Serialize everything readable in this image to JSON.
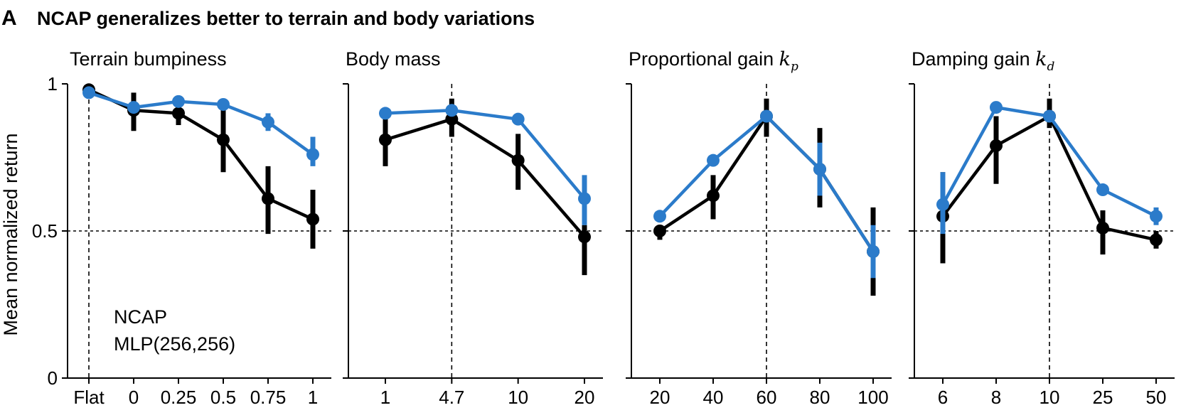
{
  "panel_letter": "A",
  "figure_title": "NCAP generalizes better to terrain and body variations",
  "colors": {
    "ncap": "#2b7bca",
    "mlp": "#000000"
  },
  "legend": {
    "ncap": "NCAP",
    "mlp": "MLP(256,256)"
  },
  "chart_data": [
    {
      "type": "line",
      "title": "Terrain bumpiness",
      "title_var": "",
      "title_sub": "",
      "xlabel": "",
      "ylabel": "Mean normalized return",
      "ylim": [
        0,
        1
      ],
      "yticks": [
        0,
        0.5,
        1
      ],
      "ytick_labels": [
        "0",
        "0.5",
        "1"
      ],
      "categories": [
        "Flat",
        "0",
        "0.25",
        "0.5",
        "0.75",
        "1"
      ],
      "reference_index": 0,
      "reference_y": 0.5,
      "series": [
        {
          "name": "MLP(256,256)",
          "color": "#000000",
          "values": [
            0.98,
            0.91,
            0.9,
            0.81,
            0.61,
            0.54
          ],
          "lower": [
            0.96,
            0.84,
            0.86,
            0.7,
            0.49,
            0.44
          ],
          "upper": [
            0.99,
            0.97,
            0.94,
            0.93,
            0.72,
            0.64
          ]
        },
        {
          "name": "NCAP",
          "color": "#2b7bca",
          "values": [
            0.97,
            0.92,
            0.94,
            0.93,
            0.87,
            0.76
          ],
          "lower": [
            0.96,
            0.9,
            0.93,
            0.92,
            0.84,
            0.72
          ],
          "upper": [
            0.98,
            0.93,
            0.95,
            0.94,
            0.9,
            0.82
          ]
        }
      ]
    },
    {
      "type": "line",
      "title": "Body mass",
      "title_var": "",
      "title_sub": "",
      "xlabel": "",
      "ylabel": "",
      "ylim": [
        0,
        1
      ],
      "yticks": [
        0,
        0.5,
        1
      ],
      "ytick_labels": [
        "",
        "",
        ""
      ],
      "categories": [
        "1",
        "4.7",
        "10",
        "20"
      ],
      "reference_index": 1,
      "reference_y": 0.5,
      "series": [
        {
          "name": "MLP(256,256)",
          "color": "#000000",
          "values": [
            0.81,
            0.88,
            0.74,
            0.48
          ],
          "lower": [
            0.72,
            0.82,
            0.64,
            0.35
          ],
          "upper": [
            0.88,
            0.95,
            0.83,
            0.52
          ]
        },
        {
          "name": "NCAP",
          "color": "#2b7bca",
          "values": [
            0.9,
            0.91,
            0.88,
            0.61
          ],
          "lower": [
            0.89,
            0.9,
            0.87,
            0.52
          ],
          "upper": [
            0.91,
            0.93,
            0.89,
            0.69
          ]
        }
      ]
    },
    {
      "type": "line",
      "title": "Proportional gain ",
      "title_var": "k",
      "title_sub": "p",
      "xlabel": "",
      "ylabel": "",
      "ylim": [
        0,
        1
      ],
      "yticks": [
        0,
        0.5,
        1
      ],
      "ytick_labels": [
        "",
        "",
        ""
      ],
      "categories": [
        "20",
        "40",
        "60",
        "80",
        "100"
      ],
      "reference_index": 2,
      "reference_y": 0.5,
      "series": [
        {
          "name": "MLP(256,256)",
          "color": "#000000",
          "values": [
            0.5,
            0.62,
            0.89,
            0.71,
            0.43
          ],
          "lower": [
            0.47,
            0.54,
            0.82,
            0.58,
            0.28
          ],
          "upper": [
            0.52,
            0.69,
            0.95,
            0.85,
            0.58
          ]
        },
        {
          "name": "NCAP",
          "color": "#2b7bca",
          "values": [
            0.55,
            0.74,
            0.89,
            0.71,
            0.43
          ],
          "lower": [
            0.54,
            0.73,
            0.88,
            0.62,
            0.34
          ],
          "upper": [
            0.56,
            0.75,
            0.9,
            0.8,
            0.52
          ]
        }
      ]
    },
    {
      "type": "line",
      "title": "Damping gain ",
      "title_var": "k",
      "title_sub": "d",
      "xlabel": "",
      "ylabel": "",
      "ylim": [
        0,
        1
      ],
      "yticks": [
        0,
        0.5,
        1
      ],
      "ytick_labels": [
        "",
        "",
        ""
      ],
      "categories": [
        "6",
        "8",
        "10",
        "25",
        "50"
      ],
      "reference_index": 2,
      "reference_y": 0.5,
      "series": [
        {
          "name": "MLP(256,256)",
          "color": "#000000",
          "values": [
            0.55,
            0.79,
            0.89,
            0.51,
            0.47
          ],
          "lower": [
            0.39,
            0.66,
            0.85,
            0.42,
            0.44
          ],
          "upper": [
            0.7,
            0.89,
            0.95,
            0.57,
            0.5
          ]
        },
        {
          "name": "NCAP",
          "color": "#2b7bca",
          "values": [
            0.59,
            0.92,
            0.89,
            0.64,
            0.55
          ],
          "lower": [
            0.49,
            0.9,
            0.87,
            0.63,
            0.52
          ],
          "upper": [
            0.7,
            0.94,
            0.91,
            0.65,
            0.58
          ]
        }
      ]
    }
  ]
}
